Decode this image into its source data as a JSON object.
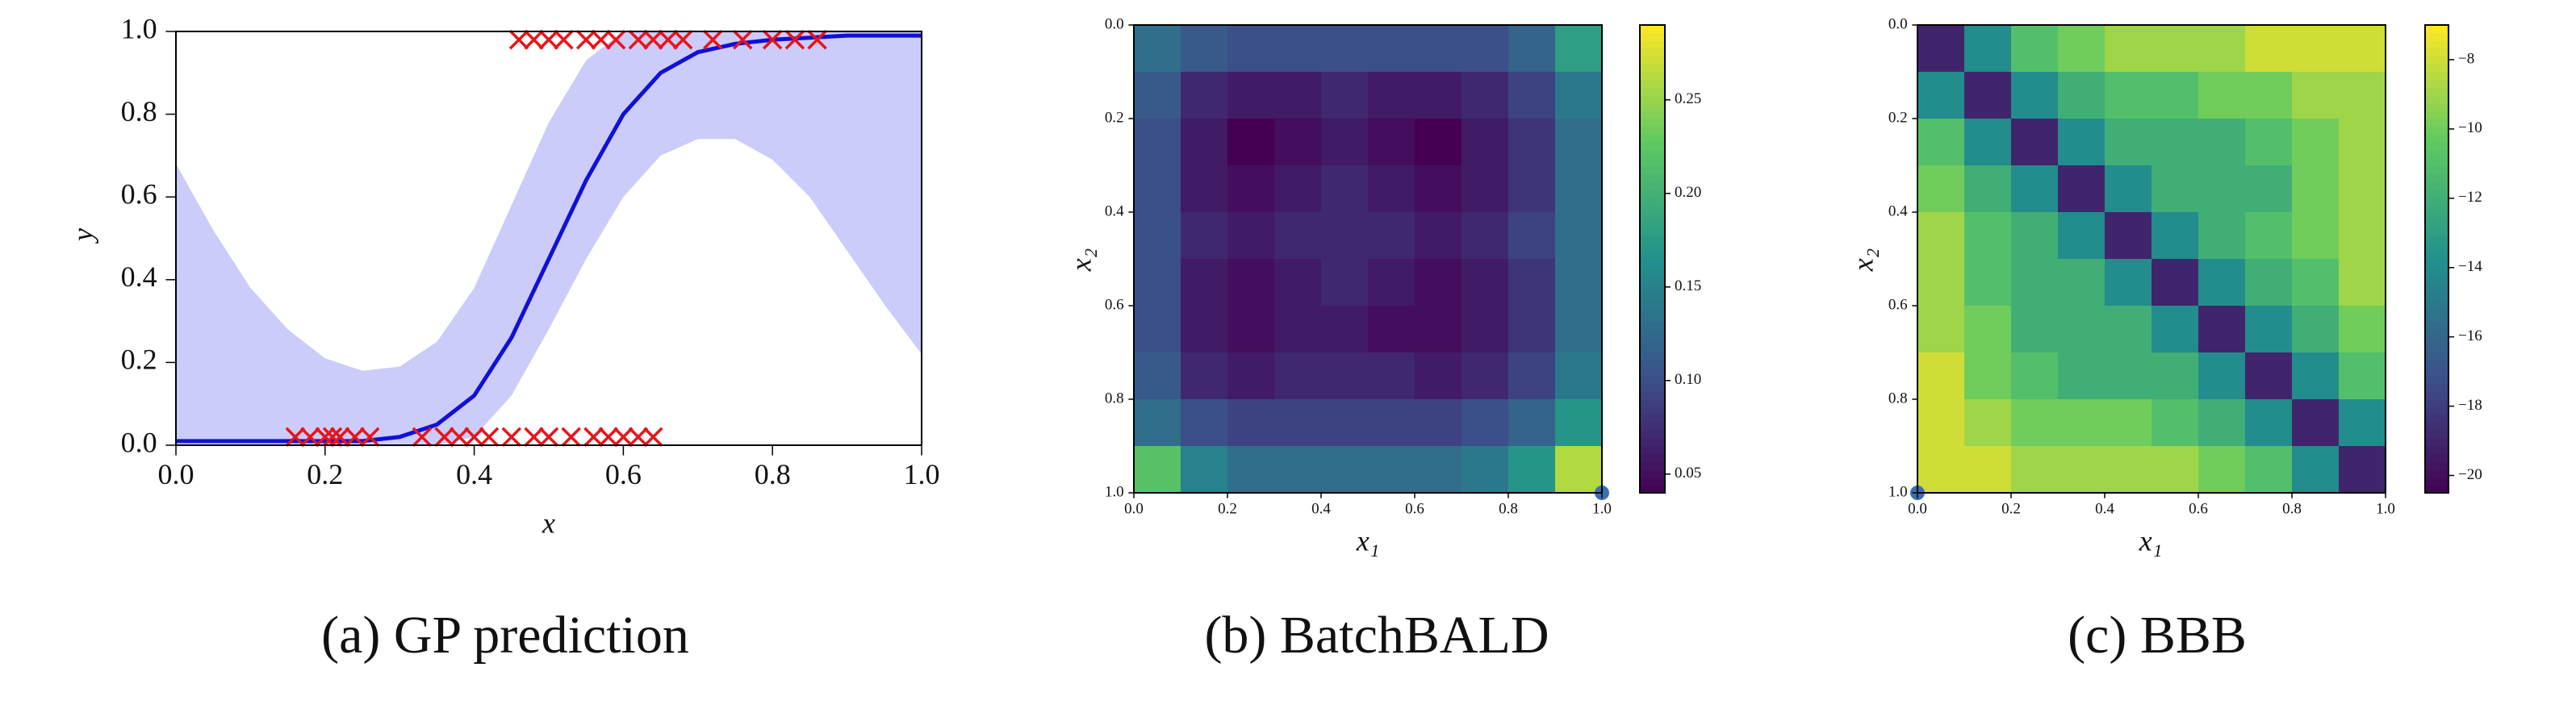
{
  "chart_data": [
    {
      "type": "line",
      "caption": "(a) GP prediction",
      "xlabel": "x",
      "ylabel": "y",
      "x": [
        0,
        0.05,
        0.1,
        0.15,
        0.2,
        0.25,
        0.3,
        0.35,
        0.4,
        0.45,
        0.5,
        0.55,
        0.6,
        0.65,
        0.7,
        0.75,
        0.8,
        0.85,
        0.9,
        0.95,
        1
      ],
      "series": [
        {
          "color": "#1010d8",
          "values": [
            0.01,
            0.01,
            0.01,
            0.01,
            0.01,
            0.01,
            0.02,
            0.05,
            0.12,
            0.26,
            0.45,
            0.64,
            0.8,
            0.9,
            0.95,
            0.97,
            0.98,
            0.985,
            0.99,
            0.99,
            0.99
          ]
        }
      ],
      "band": {
        "color": "#ccccfa",
        "lower": [
          0,
          0,
          0,
          0,
          0,
          0,
          0,
          0,
          0.02,
          0.12,
          0.28,
          0.45,
          0.6,
          0.7,
          0.74,
          0.74,
          0.69,
          0.6,
          0.47,
          0.34,
          0.22
        ],
        "upper": [
          0.68,
          0.52,
          0.38,
          0.28,
          0.21,
          0.18,
          0.19,
          0.25,
          0.38,
          0.58,
          0.78,
          0.93,
          1,
          1,
          1,
          1,
          1,
          1,
          1,
          1,
          1
        ]
      },
      "points": {
        "color": "#e8141a",
        "x": [
          0.16,
          0.18,
          0.2,
          0.21,
          0.22,
          0.24,
          0.26,
          0.33,
          0.36,
          0.38,
          0.4,
          0.42,
          0.45,
          0.48,
          0.5,
          0.53,
          0.56,
          0.58,
          0.6,
          0.62,
          0.64,
          0.46,
          0.48,
          0.5,
          0.52,
          0.55,
          0.57,
          0.59,
          0.62,
          0.64,
          0.66,
          0.68,
          0.72,
          0.76,
          0.8,
          0.83,
          0.86
        ],
        "y": [
          0.02,
          0.02,
          0.02,
          0.02,
          0.02,
          0.02,
          0.02,
          0.02,
          0.02,
          0.02,
          0.02,
          0.02,
          0.02,
          0.02,
          0.02,
          0.02,
          0.02,
          0.02,
          0.02,
          0.02,
          0.02,
          0.98,
          0.98,
          0.98,
          0.98,
          0.98,
          0.98,
          0.98,
          0.98,
          0.98,
          0.98,
          0.98,
          0.98,
          0.98,
          0.98,
          0.98,
          0.98
        ]
      },
      "xlim": [
        0,
        1
      ],
      "ylim": [
        0,
        1
      ],
      "xticks": [
        {
          "value": 0,
          "label": "0.0"
        },
        0.2,
        0.4,
        0.6,
        0.8,
        {
          "value": 1,
          "label": "1.0"
        }
      ],
      "yticks": [
        {
          "value": 0,
          "label": "0.0"
        },
        0.2,
        0.4,
        0.6,
        0.8,
        {
          "value": 1,
          "label": "1.0"
        }
      ]
    },
    {
      "type": "heatmap",
      "caption": "(b) BatchBALD",
      "xlabel": "x₁",
      "ylabel": "x₂",
      "colormap": "viridis",
      "xlim": [
        0,
        1
      ],
      "ylim": [
        1,
        0
      ],
      "xticks": [
        {
          "value": 0,
          "label": "0.0"
        },
        0.2,
        0.4,
        0.6,
        0.8,
        {
          "value": 1,
          "label": "1.0"
        }
      ],
      "yticks": [
        {
          "value": 0,
          "label": "0.0"
        },
        0.2,
        0.4,
        0.6,
        0.8,
        {
          "value": 1,
          "label": "1.0"
        }
      ],
      "values": [
        [
          0.13,
          0.11,
          0.1,
          0.1,
          0.1,
          0.1,
          0.1,
          0.1,
          0.12,
          0.18
        ],
        [
          0.11,
          0.07,
          0.06,
          0.06,
          0.07,
          0.06,
          0.06,
          0.07,
          0.09,
          0.14
        ],
        [
          0.1,
          0.06,
          0.04,
          0.05,
          0.06,
          0.05,
          0.04,
          0.06,
          0.08,
          0.13
        ],
        [
          0.1,
          0.06,
          0.05,
          0.06,
          0.07,
          0.06,
          0.05,
          0.06,
          0.08,
          0.13
        ],
        [
          0.1,
          0.07,
          0.06,
          0.07,
          0.07,
          0.07,
          0.06,
          0.07,
          0.09,
          0.13
        ],
        [
          0.1,
          0.06,
          0.05,
          0.06,
          0.07,
          0.06,
          0.05,
          0.06,
          0.08,
          0.13
        ],
        [
          0.1,
          0.06,
          0.05,
          0.06,
          0.06,
          0.05,
          0.05,
          0.06,
          0.08,
          0.13
        ],
        [
          0.11,
          0.07,
          0.06,
          0.07,
          0.07,
          0.07,
          0.06,
          0.07,
          0.09,
          0.14
        ],
        [
          0.13,
          0.1,
          0.09,
          0.09,
          0.09,
          0.09,
          0.09,
          0.1,
          0.12,
          0.17
        ],
        [
          0.22,
          0.15,
          0.13,
          0.13,
          0.13,
          0.13,
          0.13,
          0.14,
          0.17,
          0.26
        ]
      ],
      "clim": [
        0.04,
        0.29
      ],
      "cticks": [
        0.05,
        {
          "value": 0.1,
          "label": "0.10"
        },
        0.15,
        {
          "value": 0.2,
          "label": "0.20"
        },
        0.25
      ],
      "points": {
        "color": "#3a6fb0",
        "x": [
          1
        ],
        "y": [
          1
        ]
      }
    },
    {
      "type": "heatmap",
      "caption": "(c) BBB",
      "xlabel": "x₁",
      "ylabel": "x₂",
      "colormap": "viridis",
      "xlim": [
        0,
        1
      ],
      "ylim": [
        1,
        0
      ],
      "xticks": [
        {
          "value": 0,
          "label": "0.0"
        },
        0.2,
        0.4,
        0.6,
        0.8,
        {
          "value": 1,
          "label": "1.0"
        }
      ],
      "yticks": [
        {
          "value": 0,
          "label": "0.0"
        },
        0.2,
        0.4,
        0.6,
        0.8,
        {
          "value": 1,
          "label": "1.0"
        }
      ],
      "values": [
        [
          -19,
          -14,
          -11,
          -10,
          -9,
          -9,
          -9,
          -8,
          -8,
          -8
        ],
        [
          -14,
          -19,
          -14,
          -12,
          -11,
          -11,
          -10,
          -10,
          -9,
          -9
        ],
        [
          -11,
          -14,
          -19,
          -14,
          -12,
          -12,
          -12,
          -11,
          -10,
          -9
        ],
        [
          -10,
          -12,
          -14,
          -19,
          -14,
          -12,
          -12,
          -12,
          -10,
          -9
        ],
        [
          -9,
          -11,
          -12,
          -14,
          -19,
          -14,
          -12,
          -11,
          -10,
          -9
        ],
        [
          -9,
          -11,
          -12,
          -12,
          -14,
          -19,
          -14,
          -12,
          -11,
          -9
        ],
        [
          -9,
          -10,
          -12,
          -12,
          -12,
          -14,
          -19,
          -14,
          -12,
          -10
        ],
        [
          -8,
          -10,
          -11,
          -12,
          -12,
          -12,
          -14,
          -19,
          -14,
          -11
        ],
        [
          -8,
          -9,
          -10,
          -10,
          -10,
          -11,
          -12,
          -14,
          -19,
          -14
        ],
        [
          -8,
          -8,
          -9,
          -9,
          -9,
          -9,
          -10,
          -11,
          -14,
          -19
        ]
      ],
      "clim": [
        -20.5,
        -7
      ],
      "cticks": [
        {
          "value": -8,
          "label": "−8"
        },
        {
          "value": -10,
          "label": "−10"
        },
        {
          "value": -12,
          "label": "−12"
        },
        {
          "value": -14,
          "label": "−14"
        },
        {
          "value": -16,
          "label": "−16"
        },
        {
          "value": -18,
          "label": "−18"
        },
        {
          "value": -20,
          "label": "−20"
        }
      ],
      "points": {
        "color": "#3a6fb0",
        "x": [
          0
        ],
        "y": [
          1
        ]
      }
    }
  ]
}
